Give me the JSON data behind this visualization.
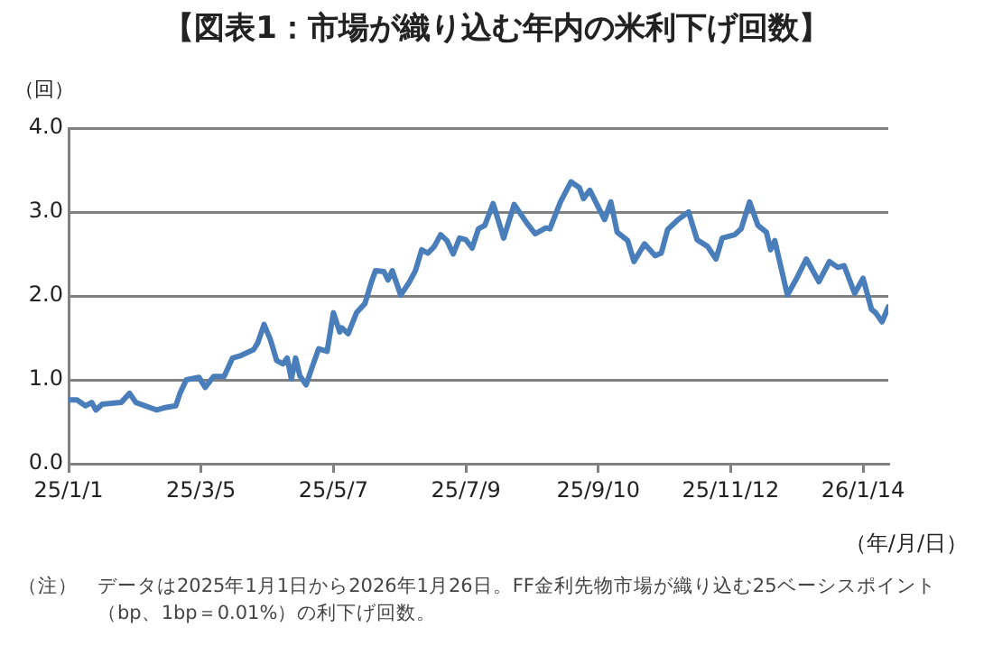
{
  "chart_data": {
    "type": "line",
    "title": "【図表1：市場が織り込む年内の米利下げ回数】",
    "ylabel": "（回）",
    "xlabel": "（年/月/日）",
    "annotations": [
      "（注）　データは2025年1月1日から2026年1月26日。FF金利先物市場が織り込む25ベーシスポイント（bp、1bp＝0.01%）の利下げ回数。"
    ],
    "x": [
      "2025-01-01",
      "2025-01-05",
      "2025-01-09",
      "2025-01-12",
      "2025-01-14",
      "2025-01-17",
      "2025-01-26",
      "2025-01-30",
      "2025-02-02",
      "2025-02-12",
      "2025-02-16",
      "2025-02-21",
      "2025-02-23",
      "2025-02-26",
      "2025-03-04",
      "2025-03-07",
      "2025-03-11",
      "2025-03-16",
      "2025-03-20",
      "2025-03-24",
      "2025-03-30",
      "2025-04-01",
      "2025-04-04",
      "2025-04-07",
      "2025-04-10",
      "2025-04-13",
      "2025-04-15",
      "2025-04-17",
      "2025-04-19",
      "2025-04-21",
      "2025-04-24",
      "2025-04-27",
      "2025-04-30",
      "2025-05-04",
      "2025-05-07",
      "2025-05-10",
      "2025-05-11",
      "2025-05-14",
      "2025-05-18",
      "2025-05-22",
      "2025-05-25",
      "2025-05-27",
      "2025-05-31",
      "2025-06-02",
      "2025-06-04",
      "2025-06-08",
      "2025-06-12",
      "2025-06-15",
      "2025-06-18",
      "2025-06-21",
      "2025-06-24",
      "2025-06-27",
      "2025-06-30",
      "2025-07-03",
      "2025-07-06",
      "2025-07-09",
      "2025-07-12",
      "2025-07-15",
      "2025-07-18",
      "2025-07-22",
      "2025-07-27",
      "2025-08-01",
      "2025-08-07",
      "2025-08-11",
      "2025-08-16",
      "2025-08-18",
      "2025-08-23",
      "2025-08-28",
      "2025-09-01",
      "2025-09-03",
      "2025-09-06",
      "2025-09-13",
      "2025-09-16",
      "2025-09-19",
      "2025-09-24",
      "2025-09-27",
      "2025-10-02",
      "2025-10-07",
      "2025-10-10",
      "2025-10-13",
      "2025-10-18",
      "2025-10-23",
      "2025-10-27",
      "2025-11-01",
      "2025-11-05",
      "2025-11-08",
      "2025-11-14",
      "2025-11-17",
      "2025-11-21",
      "2025-11-25",
      "2025-11-29",
      "2025-12-01",
      "2025-12-03",
      "2025-12-09",
      "2025-12-13",
      "2025-12-18",
      "2025-12-24",
      "2025-12-29",
      "2026-01-02",
      "2026-01-05",
      "2026-01-10",
      "2026-01-14",
      "2026-01-18",
      "2026-01-20",
      "2026-01-23",
      "2026-01-26"
    ],
    "series": [
      {
        "color": "#4a7ebb",
        "values": [
          0.76,
          0.76,
          0.69,
          0.73,
          0.64,
          0.71,
          0.73,
          0.84,
          0.73,
          0.64,
          0.67,
          0.69,
          0.84,
          1.0,
          1.03,
          0.91,
          1.04,
          1.04,
          1.26,
          1.29,
          1.36,
          1.44,
          1.66,
          1.48,
          1.23,
          1.19,
          1.26,
          1.01,
          1.26,
          1.05,
          0.94,
          1.16,
          1.37,
          1.34,
          1.8,
          1.57,
          1.62,
          1.55,
          1.8,
          1.91,
          2.16,
          2.3,
          2.29,
          2.19,
          2.3,
          2.01,
          2.16,
          2.3,
          2.55,
          2.51,
          2.59,
          2.73,
          2.66,
          2.5,
          2.69,
          2.67,
          2.57,
          2.8,
          2.84,
          3.1,
          2.69,
          3.09,
          2.87,
          2.74,
          2.81,
          2.8,
          3.12,
          3.36,
          3.29,
          3.16,
          3.26,
          2.91,
          3.12,
          2.76,
          2.66,
          2.41,
          2.62,
          2.48,
          2.51,
          2.79,
          2.91,
          3.0,
          2.67,
          2.59,
          2.44,
          2.69,
          2.73,
          2.8,
          3.12,
          2.84,
          2.76,
          2.55,
          2.66,
          2.01,
          2.19,
          2.44,
          2.17,
          2.41,
          2.34,
          2.36,
          2.03,
          2.21,
          1.84,
          1.8,
          1.69,
          1.87
        ]
      }
    ],
    "xlim": [
      "2025-01-01",
      "2026-01-26"
    ],
    "xticks": [
      {
        "value": "2025-01-01",
        "label": "25/1/1"
      },
      {
        "value": "2025-03-05",
        "label": "25/3/5"
      },
      {
        "value": "2025-05-07",
        "label": "25/5/7"
      },
      {
        "value": "2025-07-09",
        "label": "25/7/9"
      },
      {
        "value": "2025-09-10",
        "label": "25/9/10"
      },
      {
        "value": "2025-11-12",
        "label": "25/11/12"
      },
      {
        "value": "2026-01-14",
        "label": "26/1/14"
      }
    ],
    "ylim": [
      0,
      4
    ],
    "yticks": [
      {
        "value": 0,
        "label": "0.0"
      },
      {
        "value": 1,
        "label": "1.0"
      },
      {
        "value": 2,
        "label": "2.0"
      },
      {
        "value": 3,
        "label": "3.0"
      },
      {
        "value": 4,
        "label": "4.0"
      }
    ],
    "grid": "y",
    "legend": false,
    "marker": "none",
    "line_style": "solid"
  }
}
